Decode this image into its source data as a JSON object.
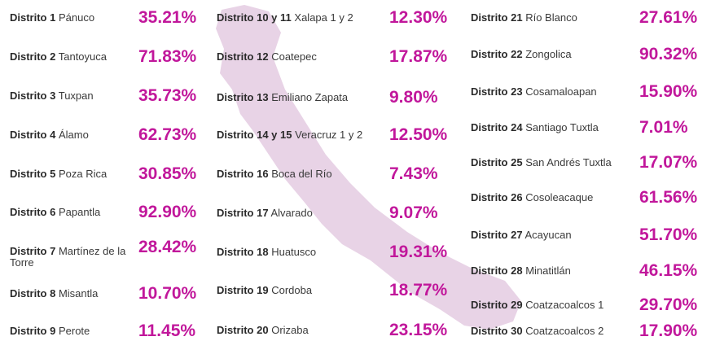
{
  "columns": [
    [
      {
        "district": "Distrito 1",
        "name": "Pánuco",
        "value": "35.21%"
      },
      {
        "district": "Distrito 2",
        "name": "Tantoyuca",
        "value": "71.83%"
      },
      {
        "district": "Distrito 3",
        "name": "Tuxpan",
        "value": "35.73%"
      },
      {
        "district": "Distrito 4",
        "name": "Álamo",
        "value": "62.73%"
      },
      {
        "district": "Distrito 5",
        "name": "Poza Rica",
        "value": "30.85%"
      },
      {
        "district": "Distrito 6",
        "name": "Papantla",
        "value": "92.90%"
      },
      {
        "district": "Distrito 7",
        "name": "Martínez de la Torre",
        "value": "28.42%"
      },
      {
        "district": "Distrito 8",
        "name": "Misantla",
        "value": "10.70%"
      },
      {
        "district": "Distrito 9",
        "name": "Perote",
        "value": "11.45%"
      }
    ],
    [
      {
        "district": "Distrito 10 y 11",
        "name": "Xalapa 1 y 2",
        "value": "12.30%"
      },
      {
        "district": "Distrito 12",
        "name": "Coatepec",
        "value": "17.87%"
      },
      {
        "district": "Distrito 13",
        "name": "Emiliano Zapata",
        "value": "9.80%"
      },
      {
        "district": "Distrito 14 y 15",
        "name": "Veracruz 1 y 2",
        "value": "12.50%"
      },
      {
        "district": "Distrito 16",
        "name": "Boca del Río",
        "value": "7.43%"
      },
      {
        "district": "Distrito 17",
        "name": "Alvarado",
        "value": "9.07%"
      },
      {
        "district": "Distrito 18",
        "name": "Huatusco",
        "value": "19.31%"
      },
      {
        "district": "Distrito 19",
        "name": "Cordoba",
        "value": "18.77%"
      },
      {
        "district": "Distrito 20",
        "name": "Orizaba",
        "value": "23.15%"
      }
    ],
    [
      {
        "district": "Distrito 21",
        "name": "Río Blanco",
        "value": "27.61%"
      },
      {
        "district": "Distrito 22",
        "name": "Zongolica",
        "value": "90.32%"
      },
      {
        "district": "Distrito 23",
        "name": "Cosamaloapan",
        "value": "15.90%"
      },
      {
        "district": "Distrito 24",
        "name": "Santiago Tuxtla",
        "value": "7.01%"
      },
      {
        "district": "Distrito 25",
        "name": "San Andrés Tuxtla",
        "value": "17.07%"
      },
      {
        "district": "Distrito 26",
        "name": "Cosoleacaque",
        "value": "61.56%"
      },
      {
        "district": "Distrito 27",
        "name": "Acayucan",
        "value": "51.70%"
      },
      {
        "district": "Distrito 28",
        "name": "Minatitlán",
        "value": "46.15%"
      },
      {
        "district": "Distrito 29",
        "name": "Coatzacoalcos 1",
        "value": "29.70%"
      },
      {
        "district": "Distrito 30",
        "name": "Coatzacoalcos 2",
        "value": "17.90%"
      }
    ]
  ]
}
